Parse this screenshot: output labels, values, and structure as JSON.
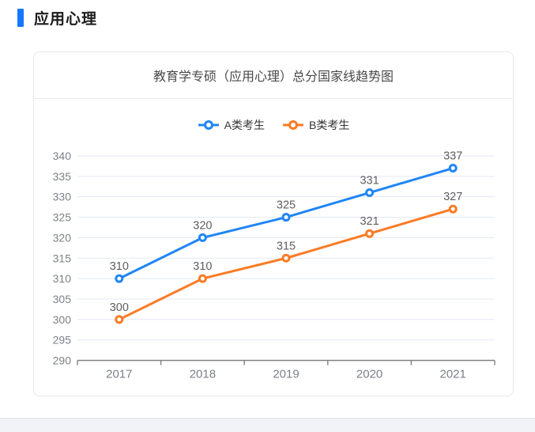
{
  "page": {
    "section_title": "应用心理",
    "accent_color": "#1677ff"
  },
  "card": {
    "title": "教育学专硕（应用心理）总分国家线趋势图"
  },
  "chart_data": {
    "type": "line",
    "title": "教育学专硕（应用心理）总分国家线趋势图",
    "categories": [
      "2017",
      "2018",
      "2019",
      "2020",
      "2021"
    ],
    "series": [
      {
        "name": "A类考生",
        "color": "#2086f5",
        "values": [
          310,
          320,
          325,
          331,
          337
        ]
      },
      {
        "name": "B类考生",
        "color": "#fa7b25",
        "values": [
          300,
          310,
          315,
          321,
          327
        ]
      }
    ],
    "xlabel": "",
    "ylabel": "",
    "ylim": [
      290,
      340
    ],
    "ytick_step": 5,
    "grid": true,
    "legend_position": "top",
    "data_labels": true,
    "colors": {
      "gridline": "#e3e9f3",
      "axis_line": "#7f8083",
      "tick_label": "#7c8087",
      "data_label": "#5e5e60"
    }
  }
}
